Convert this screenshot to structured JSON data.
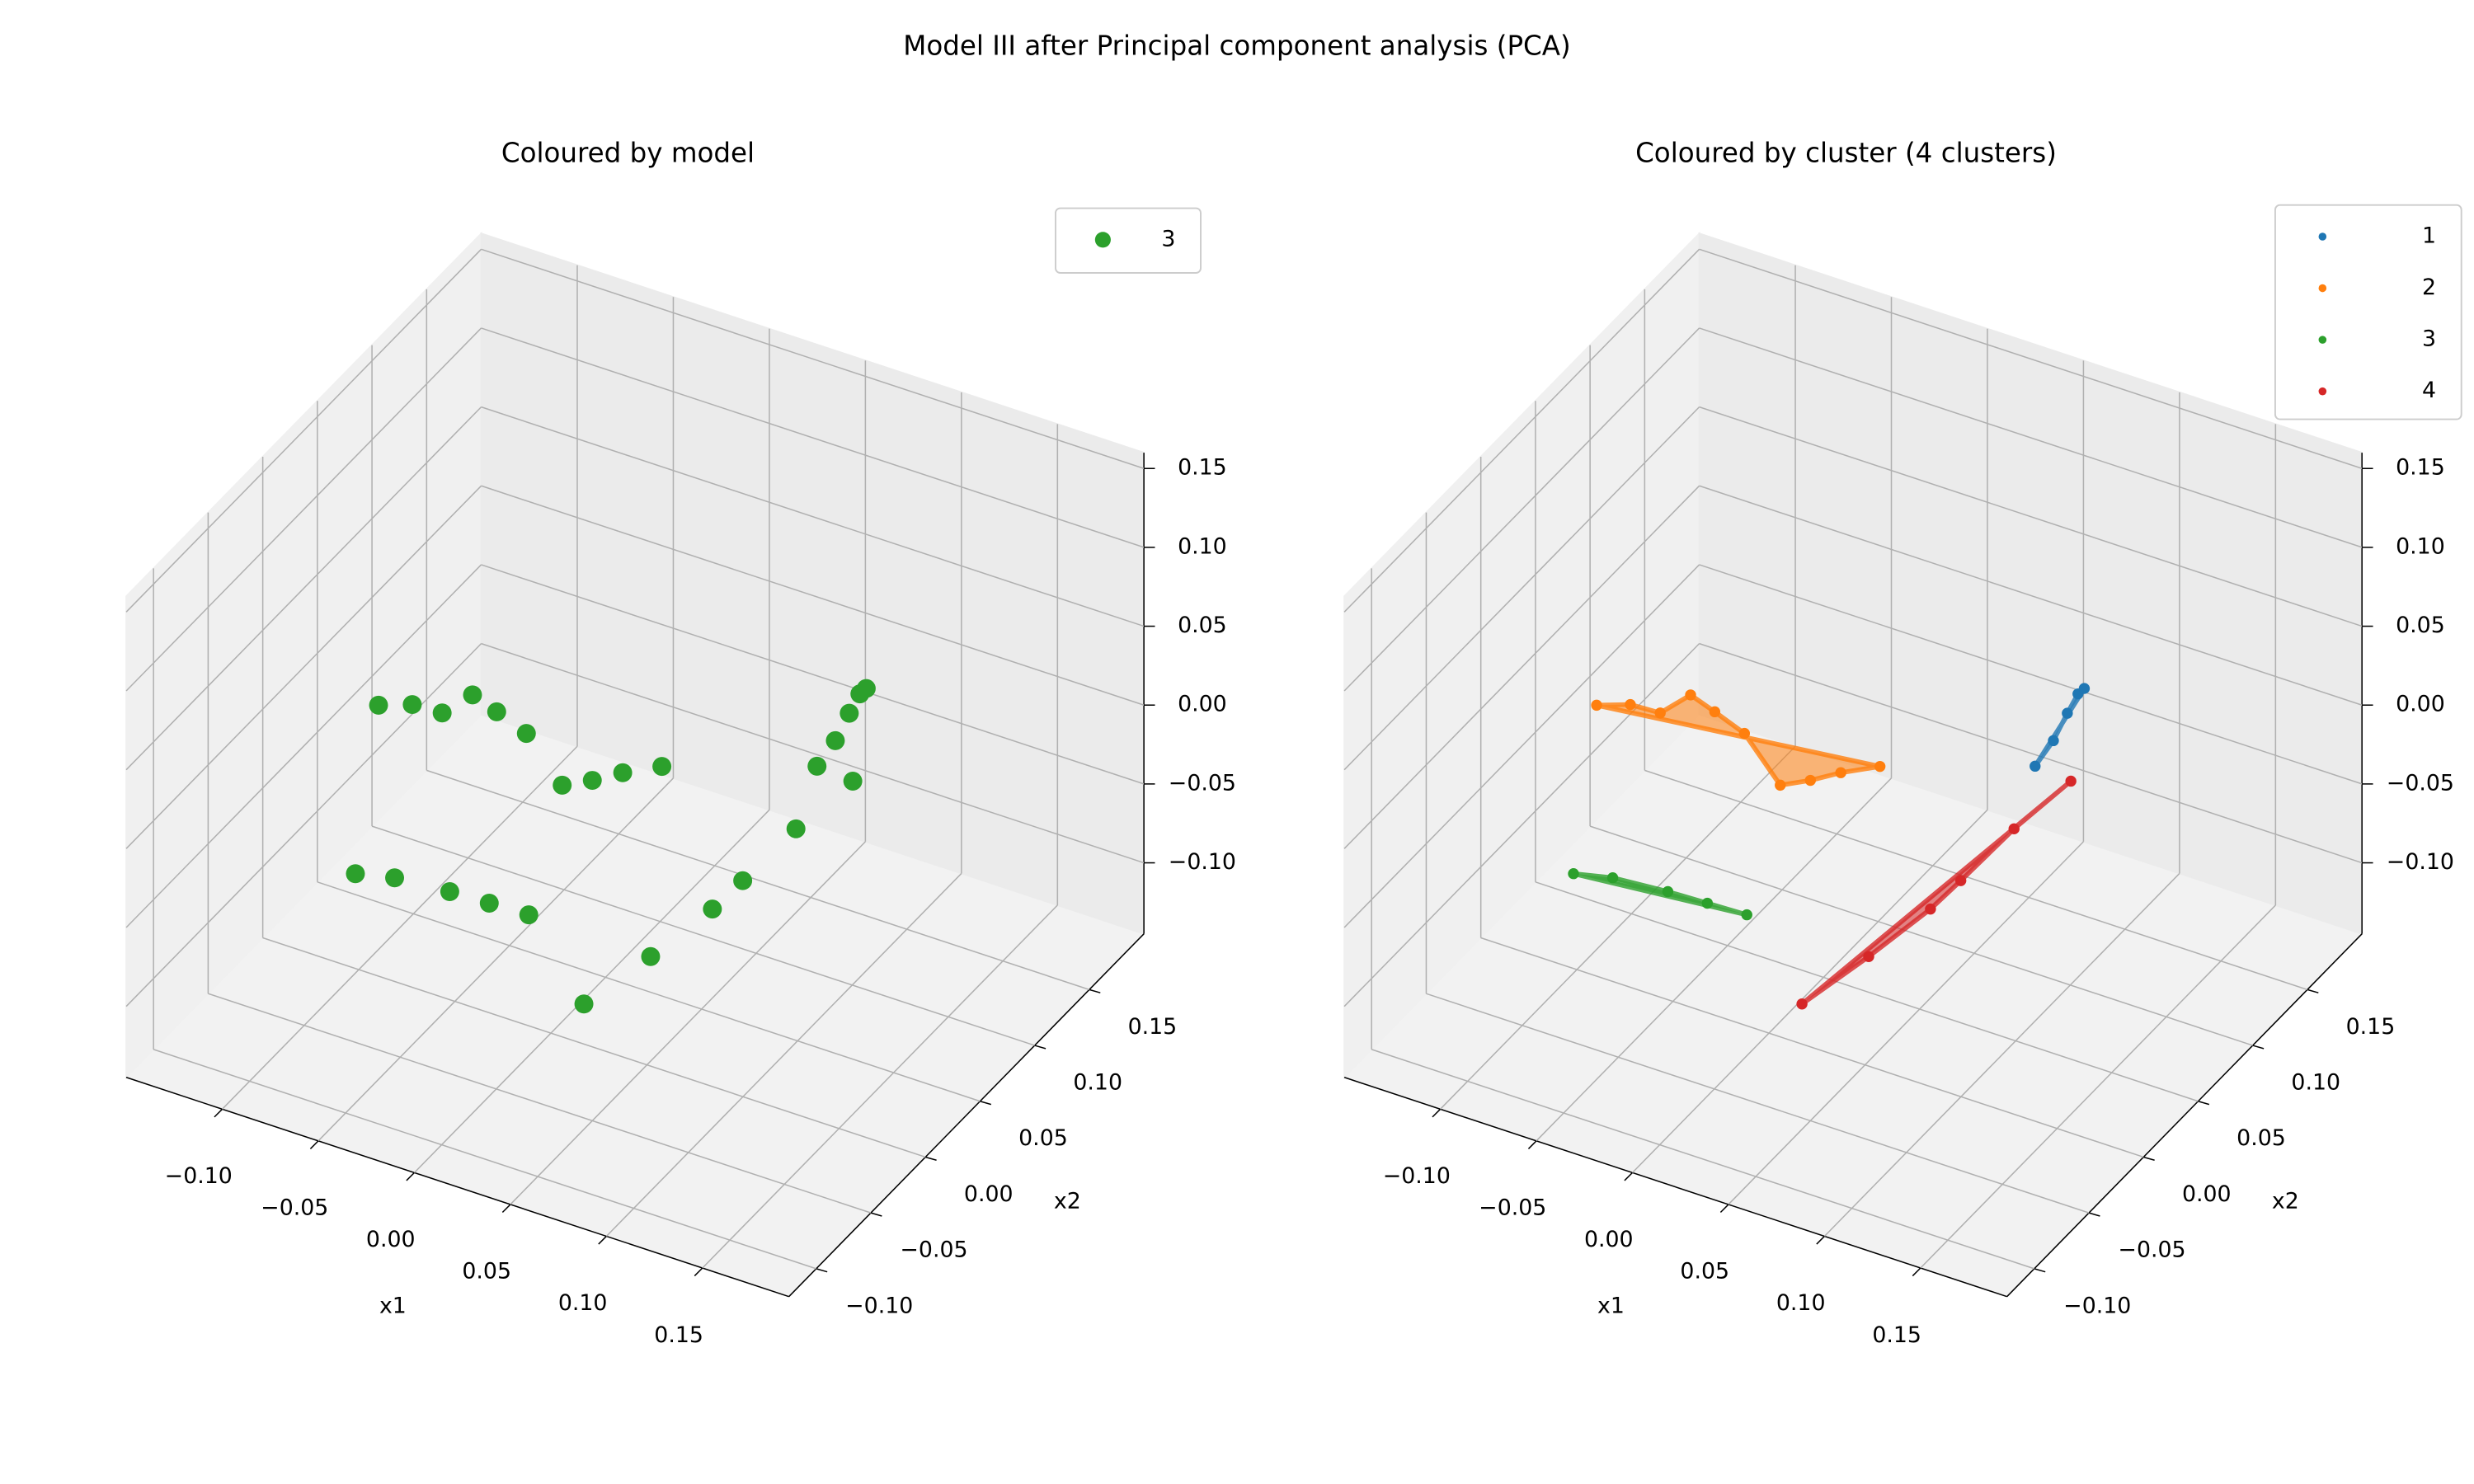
{
  "suptitle": "Model III after Principal component analysis (PCA)",
  "chart_data": [
    {
      "type": "scatter3d",
      "title": "Coloured by model",
      "xlabel": "x1",
      "ylabel": "x2",
      "xlim": [
        -0.15,
        0.195
      ],
      "ylim": [
        -0.125,
        0.2
      ],
      "zlim": [
        -0.145,
        0.16
      ],
      "xticks": [
        {
          "value": -0.1,
          "label": "−0.10"
        },
        {
          "value": -0.05,
          "label": "−0.05"
        },
        {
          "value": 0,
          "label": "0.00"
        },
        0.05,
        {
          "value": 0.1,
          "label": "0.10"
        },
        0.15
      ],
      "yticks": [
        {
          "value": -0.1,
          "label": "−0.10"
        },
        {
          "value": -0.05,
          "label": "−0.05"
        },
        {
          "value": 0,
          "label": "0.00"
        },
        0.05,
        {
          "value": 0.1,
          "label": "0.10"
        },
        0.15
      ],
      "zticks": [
        {
          "value": -0.1,
          "label": "−0.10"
        },
        {
          "value": -0.05,
          "label": "−0.05"
        },
        {
          "value": 0,
          "label": "0.00"
        },
        0.05,
        {
          "value": 0.1,
          "label": "0.10"
        },
        0.15
      ],
      "legend": "upper right",
      "grid": true,
      "hulls": false,
      "series": [
        {
          "name": "3",
          "color": "#2ca02c",
          "x": [
            0.076,
            0.077,
            0.078,
            0.079,
            0.08,
            -0.092,
            -0.079,
            -0.064,
            -0.059,
            -0.043,
            -0.023,
            0.011,
            0.021,
            0.03,
            0.043,
            -0.083,
            -0.066,
            -0.039,
            -0.019,
            0.001,
            0.057,
            0.065,
            0.071,
            0.072,
            0.073,
            0.077
          ],
          "y": [
            0.11,
            0.125,
            0.136,
            0.144,
            0.148,
            0.004,
            0.012,
            0.013,
            0.032,
            0.026,
            0.018,
            -0.009,
            0.001,
            0.013,
            0.026,
            -0.033,
            -0.027,
            -0.024,
            -0.023,
            -0.022,
            -0.07,
            -0.023,
            0.023,
            0.049,
            0.096,
            0.141
          ],
          "z": [
            -0.023,
            -0.017,
            -0.007,
            0.0,
            0.001,
            0.023,
            0.023,
            0.023,
            0.023,
            0.023,
            0.023,
            0.023,
            0.023,
            0.023,
            0.023,
            -0.054,
            -0.054,
            -0.054,
            -0.054,
            -0.054,
            -0.054,
            -0.054,
            -0.054,
            -0.054,
            -0.054,
            -0.054
          ]
        }
      ]
    },
    {
      "type": "scatter3d",
      "title": "Coloured by cluster (4 clusters)",
      "xlabel": "x1",
      "ylabel": "x2",
      "xlim": [
        -0.15,
        0.195
      ],
      "ylim": [
        -0.125,
        0.2
      ],
      "zlim": [
        -0.145,
        0.16
      ],
      "xticks": [
        {
          "value": -0.1,
          "label": "−0.10"
        },
        {
          "value": -0.05,
          "label": "−0.05"
        },
        {
          "value": 0,
          "label": "0.00"
        },
        0.05,
        {
          "value": 0.1,
          "label": "0.10"
        },
        0.15
      ],
      "yticks": [
        {
          "value": -0.1,
          "label": "−0.10"
        },
        {
          "value": -0.05,
          "label": "−0.05"
        },
        {
          "value": 0,
          "label": "0.00"
        },
        0.05,
        {
          "value": 0.1,
          "label": "0.10"
        },
        0.15
      ],
      "zticks": [
        {
          "value": -0.1,
          "label": "−0.10"
        },
        {
          "value": -0.05,
          "label": "−0.05"
        },
        {
          "value": 0,
          "label": "0.00"
        },
        0.05,
        {
          "value": 0.1,
          "label": "0.10"
        },
        0.15
      ],
      "legend": "upper right",
      "grid": true,
      "hulls": true,
      "series": [
        {
          "name": "1",
          "color": "#1f77b4",
          "x": [
            0.076,
            0.077,
            0.078,
            0.079,
            0.08
          ],
          "y": [
            0.11,
            0.125,
            0.136,
            0.144,
            0.148
          ],
          "z": [
            -0.023,
            -0.017,
            -0.007,
            0.0,
            0.001
          ]
        },
        {
          "name": "2",
          "color": "#ff7f0e",
          "x": [
            -0.092,
            -0.079,
            -0.064,
            -0.059,
            -0.043,
            -0.023,
            0.011,
            0.021,
            0.03,
            0.043
          ],
          "y": [
            0.004,
            0.012,
            0.013,
            0.032,
            0.026,
            0.018,
            -0.009,
            0.001,
            0.013,
            0.026
          ],
          "z": [
            0.023,
            0.023,
            0.023,
            0.023,
            0.023,
            0.023,
            0.023,
            0.023,
            0.023,
            0.023
          ]
        },
        {
          "name": "3",
          "color": "#2ca02c",
          "x": [
            -0.083,
            -0.066,
            -0.039,
            -0.019,
            0.001
          ],
          "y": [
            -0.033,
            -0.027,
            -0.024,
            -0.023,
            -0.022
          ],
          "z": [
            -0.054,
            -0.054,
            -0.054,
            -0.054,
            -0.054
          ]
        },
        {
          "name": "4",
          "color": "#d62728",
          "x": [
            0.057,
            0.065,
            0.071,
            0.072,
            0.073,
            0.077
          ],
          "y": [
            -0.07,
            -0.023,
            0.023,
            0.049,
            0.096,
            0.141
          ],
          "z": [
            -0.054,
            -0.054,
            -0.054,
            -0.054,
            -0.054,
            -0.054
          ]
        }
      ]
    }
  ]
}
